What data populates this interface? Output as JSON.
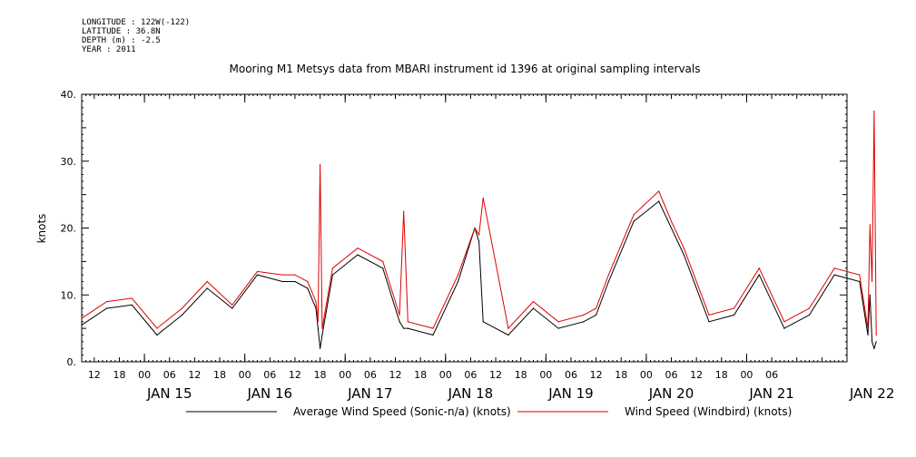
{
  "header": {
    "lines": [
      "LONGITUDE : 122W(-122)",
      "LATITUDE : 36.8N",
      "DEPTH (m) : -2.5",
      "YEAR : 2011"
    ]
  },
  "chart_data": {
    "type": "line",
    "title": "Mooring M1 Metsys data from MBARI instrument id 1396 at original sampling intervals",
    "ylabel": "knots",
    "xlabel": "",
    "ylim": [
      0,
      40
    ],
    "yticks": [
      "0.",
      "10.",
      "20.",
      "30.",
      "40."
    ],
    "xlim_hours_from_jan15_00": [
      -15,
      168
    ],
    "hour_tick_labels": [
      "12",
      "18",
      "00",
      "06",
      "12",
      "18",
      "00",
      "06",
      "12",
      "18",
      "00",
      "06",
      "12",
      "18",
      "00",
      "06",
      "12",
      "18",
      "00",
      "06",
      "12",
      "18",
      "00",
      "06",
      "12",
      "18",
      "00",
      "06"
    ],
    "day_labels": [
      "JAN 15",
      "JAN 16",
      "JAN 17",
      "JAN 18",
      "JAN 19",
      "JAN 20",
      "JAN 21",
      "JAN 22"
    ],
    "grid": false,
    "legend": "bottom",
    "colors": {
      "Average Wind Speed (Sonic-n/a) (knots)": "#000000",
      "Wind Speed (Windbird) (knots)": "#e00000"
    },
    "x_times": [
      "Jan 14 09:00",
      "Jan 14 15:00",
      "Jan 14 21:00",
      "Jan 15 03:00",
      "Jan 15 09:00",
      "Jan 15 15:00",
      "Jan 15 21:00",
      "Jan 16 03:00",
      "Jan 16 09:00",
      "Jan 16 12:00",
      "Jan 16 15:00",
      "Jan 16 17:00",
      "Jan 16 17:30",
      "Jan 16 18:00",
      "Jan 16 18:30",
      "Jan 16 21:00",
      "Jan 17 03:00",
      "Jan 17 09:00",
      "Jan 17 13:00",
      "Jan 17 14:00",
      "Jan 17 15:00",
      "Jan 17 21:00",
      "Jan 18 03:00",
      "Jan 18 07:00",
      "Jan 18 08:00",
      "Jan 18 09:00",
      "Jan 18 15:00",
      "Jan 18 21:00",
      "Jan 19 03:00",
      "Jan 19 09:00",
      "Jan 19 12:00",
      "Jan 19 15:00",
      "Jan 19 21:00",
      "Jan 20 03:00",
      "Jan 20 06:00",
      "Jan 20 09:00",
      "Jan 20 15:00",
      "Jan 20 21:00",
      "Jan 21 03:00",
      "Jan 21 09:00",
      "Jan 21 15:00",
      "Jan 21 21:00",
      "Jan 22 03:00",
      "Jan 22 05:00",
      "Jan 22 05:30",
      "Jan 22 06:00",
      "Jan 22 06:30",
      "Jan 22 07:00"
    ],
    "series": [
      {
        "name": "Average Wind Speed (Sonic-n/a) (knots)",
        "values": [
          5.5,
          8,
          8.5,
          4,
          7,
          11,
          8,
          13,
          12,
          12,
          11,
          8,
          5,
          2,
          4,
          13,
          16,
          14,
          6,
          5,
          5,
          4,
          12,
          20,
          18,
          6,
          4,
          8,
          5,
          6,
          7,
          12,
          21,
          24,
          20,
          16,
          6,
          7,
          13,
          5,
          7,
          13,
          12,
          4,
          10,
          3,
          2,
          3
        ]
      },
      {
        "name": "Wind Speed (Windbird) (knots)",
        "values": [
          6.5,
          9,
          9.5,
          5,
          8,
          12,
          8.5,
          13.5,
          13,
          13,
          12,
          9,
          6,
          29.5,
          5,
          14,
          17,
          15,
          7,
          22.5,
          6,
          5,
          13,
          20,
          19,
          24.5,
          5,
          9,
          6,
          7,
          8,
          13,
          22,
          25.5,
          21,
          17,
          7,
          8,
          14,
          6,
          8,
          14,
          13,
          5,
          20.5,
          12,
          37.5,
          4
        ]
      }
    ]
  }
}
